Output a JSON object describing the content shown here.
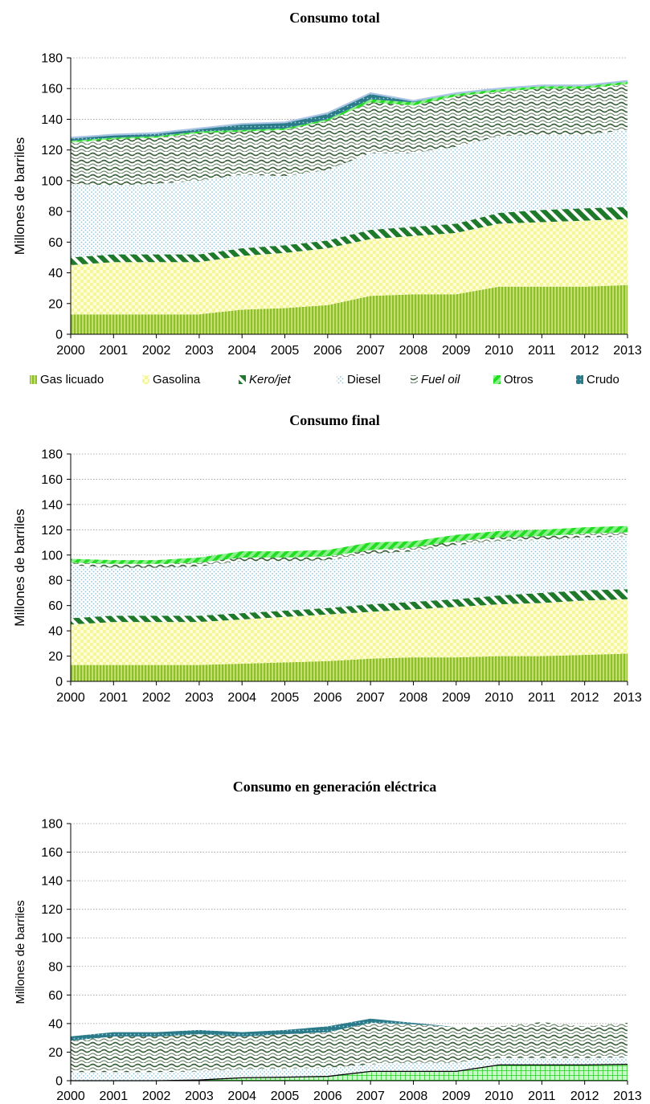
{
  "chart_data": [
    {
      "type": "area",
      "title": "Consumo total",
      "ylabel": "Millones de barriles",
      "xlabel": "",
      "ylim": [
        0,
        180
      ],
      "yticks": [
        0,
        20,
        40,
        60,
        80,
        100,
        120,
        140,
        160,
        180
      ],
      "x": [
        "2000",
        "2001",
        "2002",
        "2003",
        "2004",
        "2005",
        "2006",
        "2007",
        "2008",
        "2009",
        "2010",
        "2011",
        "2012",
        "2013"
      ],
      "stacked": true,
      "grid": true,
      "legend": "bottom",
      "series": [
        {
          "key": "gaslic",
          "values": [
            13,
            13,
            13,
            13,
            16,
            17,
            19,
            25,
            26,
            26,
            31,
            31,
            31,
            32
          ]
        },
        {
          "key": "gasolina",
          "values": [
            32,
            34,
            34,
            34,
            35,
            36,
            37,
            37,
            38,
            40,
            41,
            42,
            43,
            43
          ]
        },
        {
          "key": "kero",
          "values": [
            5,
            5,
            5,
            5,
            5,
            5,
            5,
            6,
            6,
            6,
            7,
            8,
            8,
            8
          ]
        },
        {
          "key": "diesel",
          "values": [
            48,
            45,
            46,
            48,
            48,
            45,
            46,
            50,
            48,
            50,
            50,
            49,
            48,
            50
          ]
        },
        {
          "key": "fuel",
          "values": [
            27,
            30,
            30,
            31,
            28,
            30,
            32,
            33,
            31,
            33,
            29,
            30,
            30,
            30
          ]
        },
        {
          "key": "otros",
          "values": [
            1,
            1,
            1,
            1,
            1,
            1,
            1,
            2,
            2,
            2,
            2,
            2,
            2,
            2
          ]
        },
        {
          "key": "crudo",
          "values": [
            2,
            2,
            2,
            2,
            4,
            4,
            4,
            4,
            1,
            0,
            0,
            0,
            0,
            0
          ]
        }
      ]
    },
    {
      "type": "area",
      "title": "Consumo final",
      "ylabel": "Millones de barriles",
      "xlabel": "",
      "ylim": [
        0,
        180
      ],
      "yticks": [
        0,
        20,
        40,
        60,
        80,
        100,
        120,
        140,
        160,
        180
      ],
      "x": [
        "2000",
        "2001",
        "2002",
        "2003",
        "2004",
        "2005",
        "2006",
        "2007",
        "2008",
        "2009",
        "2010",
        "2011",
        "2012",
        "2013"
      ],
      "stacked": true,
      "grid": true,
      "series": [
        {
          "key": "gaslic",
          "values": [
            13,
            13,
            13,
            13,
            14,
            15,
            16,
            18,
            19,
            19,
            20,
            20,
            21,
            22
          ]
        },
        {
          "key": "gasolina",
          "values": [
            32,
            34,
            34,
            34,
            35,
            36,
            37,
            37,
            38,
            40,
            41,
            42,
            43,
            43
          ]
        },
        {
          "key": "kero",
          "values": [
            5,
            5,
            5,
            5,
            5,
            5,
            5,
            6,
            6,
            6,
            7,
            8,
            8,
            8
          ]
        },
        {
          "key": "diesel",
          "values": [
            42,
            38,
            38,
            39,
            41,
            39,
            38,
            40,
            40,
            43,
            43,
            42,
            42,
            42
          ]
        },
        {
          "key": "fuel",
          "values": [
            2,
            3,
            3,
            3,
            3,
            3,
            3,
            3,
            3,
            3,
            3,
            3,
            3,
            3
          ]
        },
        {
          "key": "otros",
          "values": [
            3,
            3,
            3,
            4,
            5,
            5,
            5,
            6,
            5,
            5,
            5,
            5,
            5,
            5
          ]
        }
      ]
    },
    {
      "type": "area",
      "title": "Consumo en generación eléctrica",
      "ylabel": "Millones de barriles",
      "xlabel": "",
      "ylim": [
        0,
        180
      ],
      "yticks": [
        0,
        20,
        40,
        60,
        80,
        100,
        120,
        140,
        160,
        180
      ],
      "x": [
        "2000",
        "2001",
        "2002",
        "2003",
        "2004",
        "2005",
        "2006",
        "2007",
        "2008",
        "2009",
        "2010",
        "2011",
        "2012",
        "2013"
      ],
      "stacked": true,
      "grid": true,
      "series": [
        {
          "key": "gaslic",
          "values": [
            0,
            0,
            0,
            0.5,
            2,
            2.5,
            3,
            6.5,
            6.5,
            6.5,
            11,
            11,
            11,
            11.5
          ]
        },
        {
          "key": "diesel",
          "values": [
            6,
            6,
            6,
            6,
            6,
            6,
            6,
            5,
            6,
            6,
            5,
            5,
            5,
            5
          ]
        },
        {
          "key": "fuel",
          "values": [
            22,
            25,
            25,
            26,
            23,
            24,
            25,
            29,
            27,
            25,
            22,
            25,
            22,
            24
          ]
        },
        {
          "key": "crudo",
          "values": [
            3,
            3,
            3,
            3,
            3,
            3,
            4,
            3,
            1,
            0,
            0,
            0,
            0,
            0
          ]
        }
      ]
    }
  ],
  "legend_items": [
    {
      "key": "gaslic",
      "label": "Gas licuado",
      "italic": false
    },
    {
      "key": "gasolina",
      "label": "Gasolina",
      "italic": false
    },
    {
      "key": "kero",
      "label": "Kero/jet",
      "italic": true
    },
    {
      "key": "diesel",
      "label": "Diesel",
      "italic": false
    },
    {
      "key": "fuel",
      "label": "Fuel oil",
      "italic": true
    },
    {
      "key": "otros",
      "label": "Otros",
      "italic": false
    },
    {
      "key": "crudo",
      "label": "Crudo",
      "italic": false
    }
  ],
  "colors": {
    "gaslic": "#8dbf2a",
    "gasolina": "#fbfab0",
    "kero": "#1e7a2a",
    "diesel": "#a6d4e6",
    "fuel": "#3a5f3a",
    "otros": "#33dd33",
    "crudo": "#2a7a8a",
    "grid": "#9a9a9a"
  }
}
